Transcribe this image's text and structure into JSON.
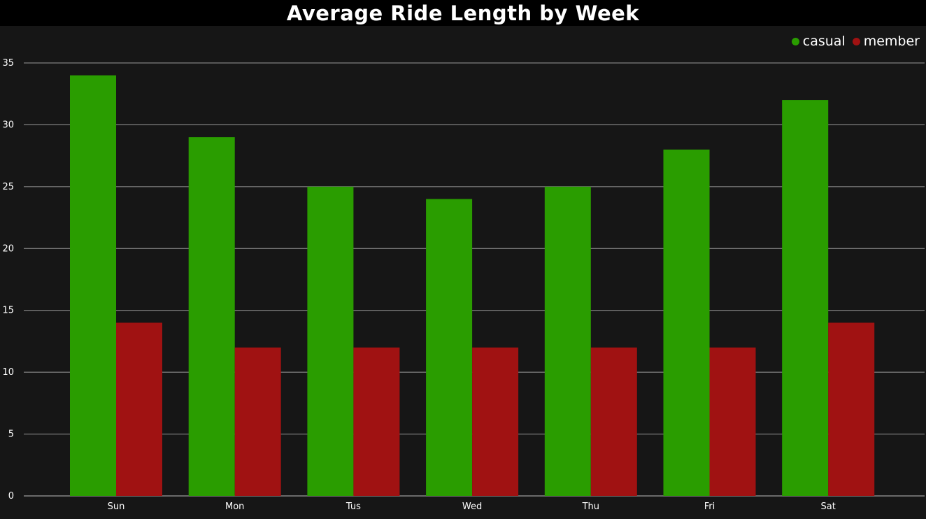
{
  "chart_data": {
    "type": "bar",
    "title": "Average Ride Length by Week",
    "xlabel": "",
    "ylabel": "",
    "categories": [
      "Sun",
      "Mon",
      "Tus",
      "Wed",
      "Thu",
      "Fri",
      "Sat"
    ],
    "series": [
      {
        "name": "casual",
        "color": "#2a9d00",
        "values": [
          34,
          29,
          25,
          24,
          25,
          28,
          32
        ]
      },
      {
        "name": "member",
        "color": "#a01212",
        "values": [
          14,
          12,
          12,
          12,
          12,
          12,
          14
        ]
      }
    ],
    "ylim": [
      0,
      35
    ],
    "yticks": [
      0,
      5,
      10,
      15,
      20,
      25,
      30,
      35
    ],
    "grid": true,
    "legend_position": "top-right"
  }
}
